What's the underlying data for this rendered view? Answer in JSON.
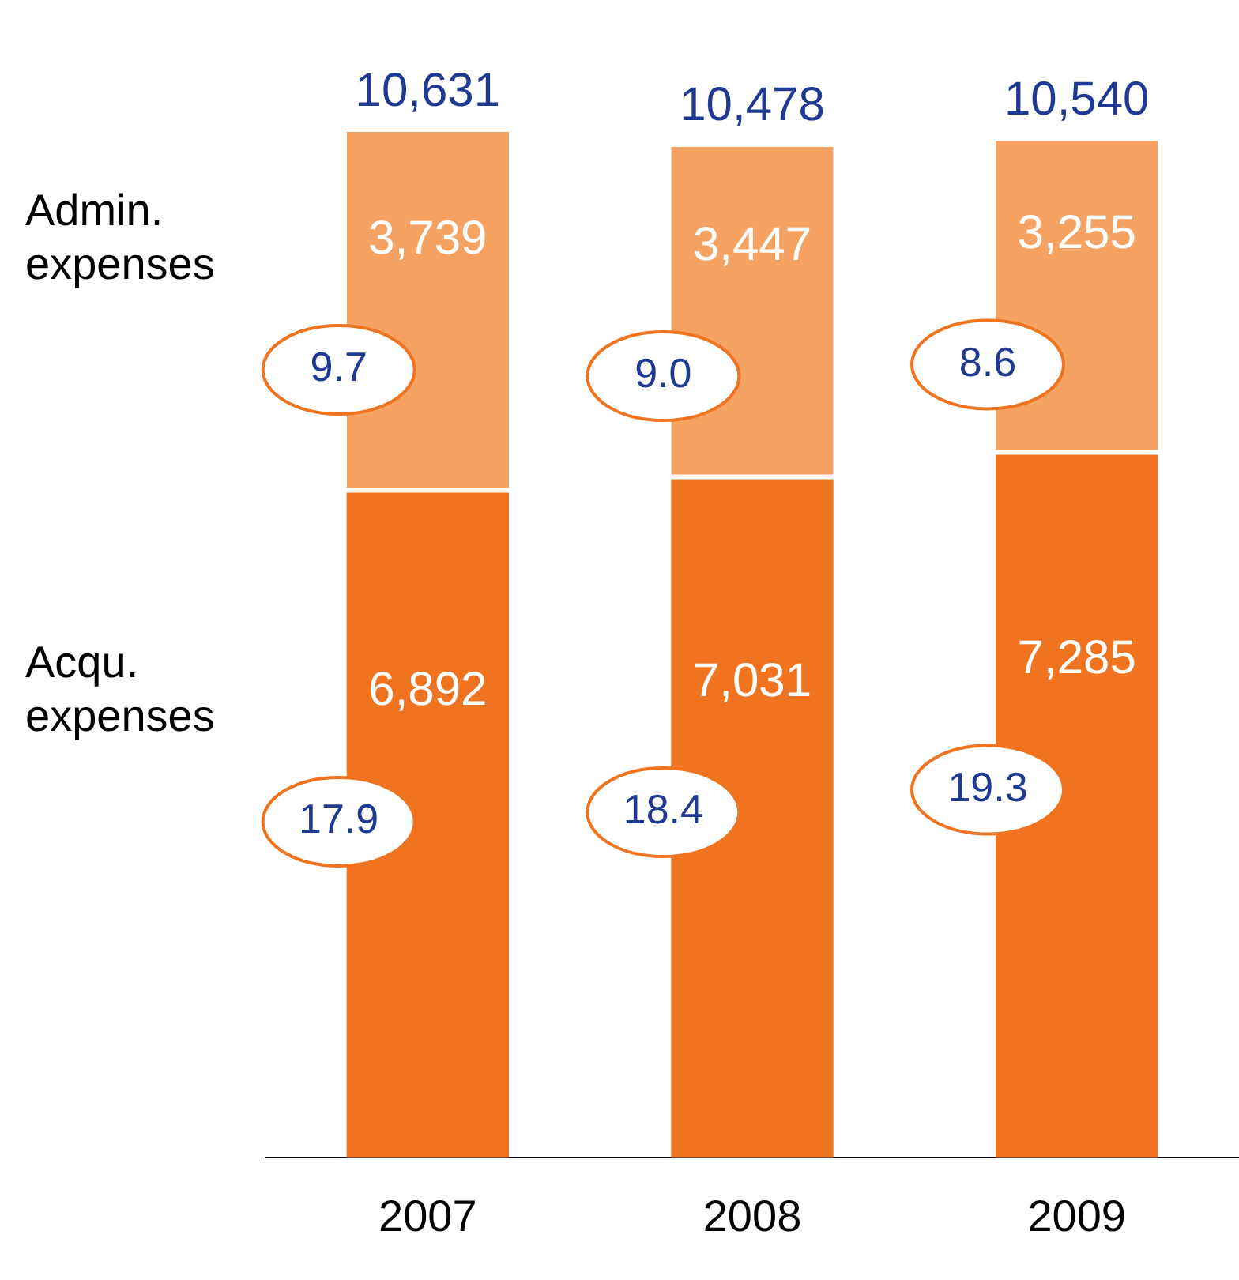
{
  "chart_data": {
    "type": "bar",
    "stacked": true,
    "tick_labels": "x",
    "grid": false,
    "categories": [
      "2007",
      "2008",
      "2009"
    ],
    "series": [
      {
        "name": "Acqu. expenses",
        "color": "#f07320",
        "values": [
          6892,
          7031,
          7285
        ],
        "value_labels": [
          "6,892",
          "7,031",
          "7,285"
        ]
      },
      {
        "name": "Admin. expenses",
        "color": "#f5a263",
        "values": [
          3739,
          3447,
          3255
        ],
        "value_labels": [
          "3,739",
          "3,447",
          "3,255"
        ]
      }
    ],
    "totals": [
      "10,631",
      "10,478",
      "10,540"
    ],
    "annotations": [
      "9.7",
      "17.9",
      "9.0",
      "18.4",
      "8.6",
      "19.3"
    ]
  }
}
